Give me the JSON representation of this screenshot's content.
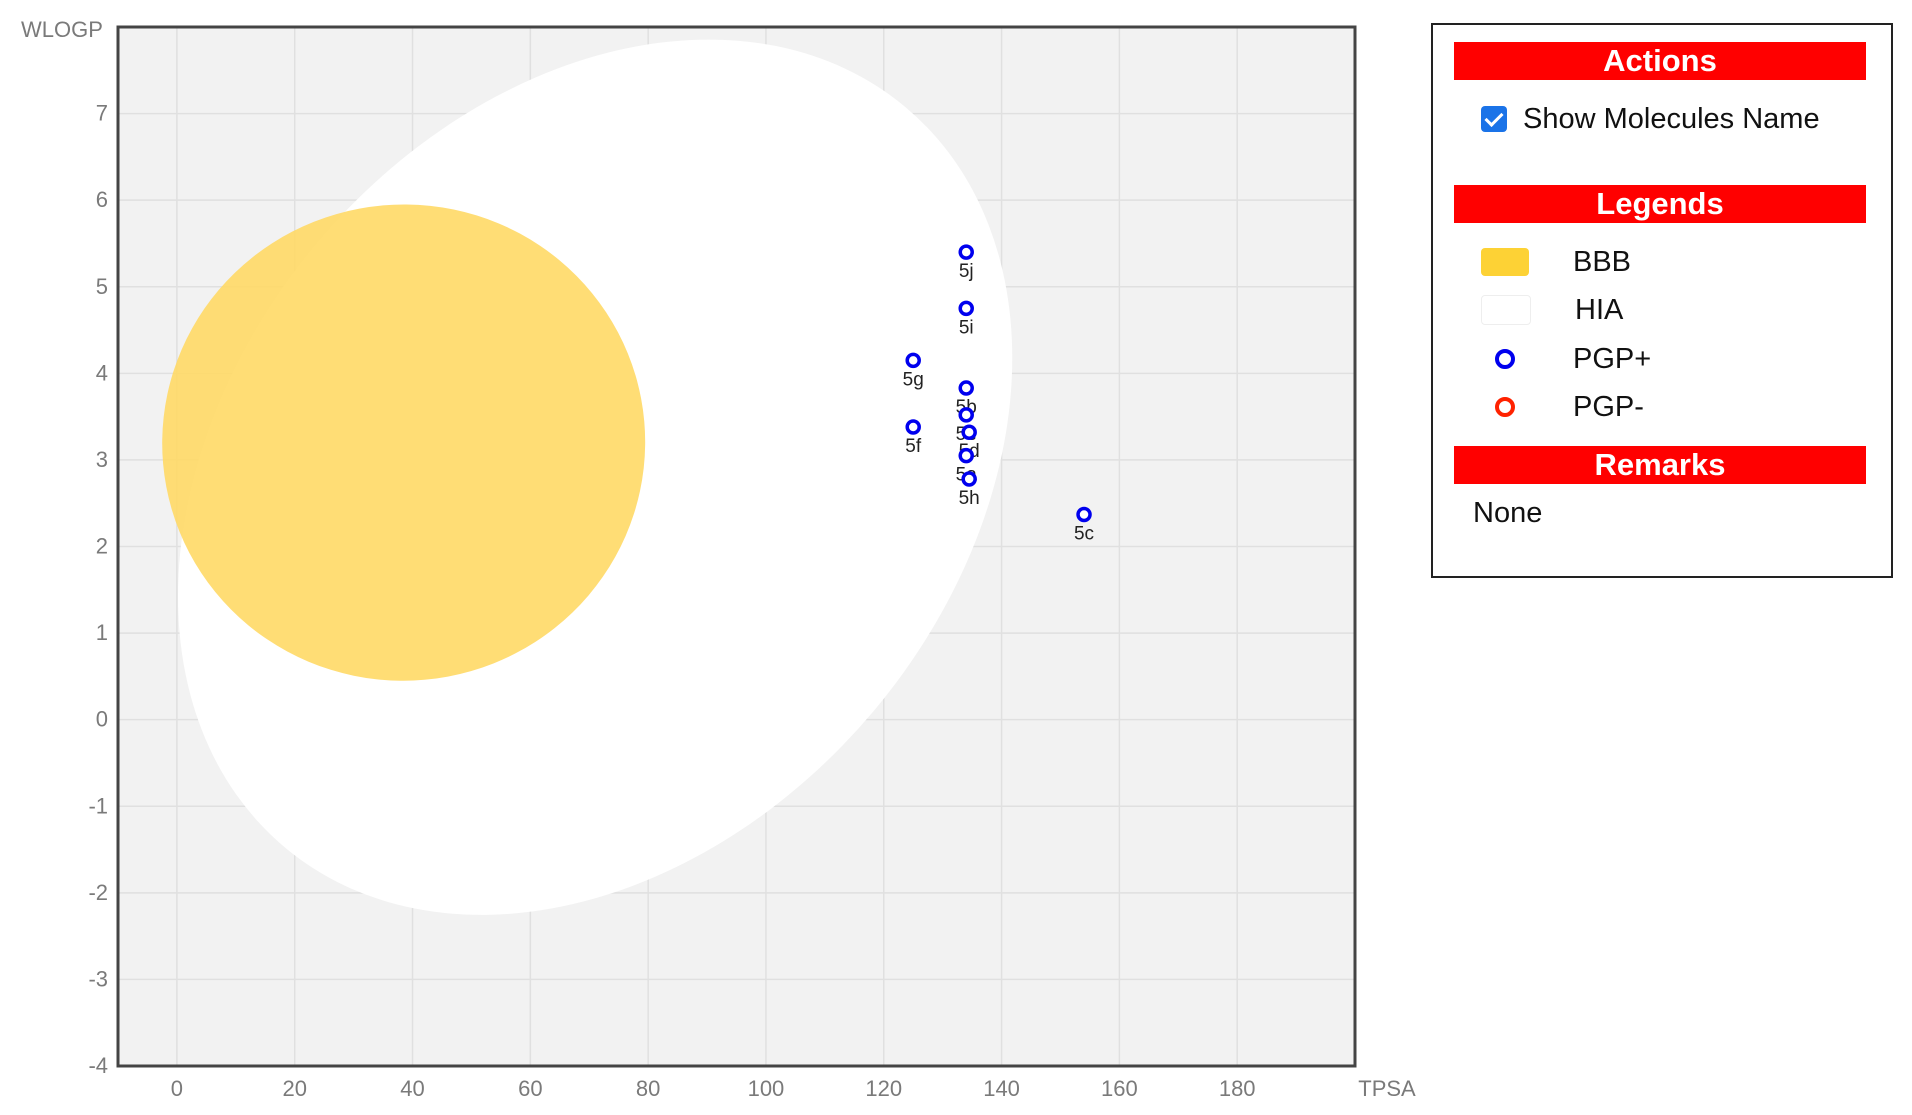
{
  "chart_data": {
    "type": "scatter",
    "xlabel": "TPSA",
    "ylabel": "WLOGP",
    "xlim": [
      -10,
      200
    ],
    "ylim": [
      -4,
      8
    ],
    "xticks": [
      0,
      20,
      40,
      60,
      80,
      100,
      120,
      140,
      160,
      180
    ],
    "yticks": [
      -4,
      -3,
      -2,
      -1,
      0,
      1,
      2,
      3,
      4,
      5,
      6,
      7
    ],
    "grid": true,
    "regions": [
      {
        "name": "HIA",
        "color": "#ffffff",
        "cx": 71.0,
        "cy": 2.8,
        "rx": 82.0,
        "ry": 4.2,
        "rotation_deg": -50
      },
      {
        "name": "BBB",
        "color": "#ffd966",
        "cx": 38.5,
        "cy": 3.2,
        "rx": 41.0,
        "ry": 2.75,
        "rotation_deg": -5
      }
    ],
    "series": [
      {
        "name": "PGP+",
        "color": "#0000ee",
        "points": [
          {
            "label": "5j",
            "x": 134.0,
            "y": 5.4
          },
          {
            "label": "5i",
            "x": 134.0,
            "y": 4.75
          },
          {
            "label": "5g",
            "x": 125.0,
            "y": 4.15
          },
          {
            "label": "5b",
            "x": 134.0,
            "y": 3.83
          },
          {
            "label": "5e",
            "x": 134.0,
            "y": 3.52
          },
          {
            "label": "5d",
            "x": 134.5,
            "y": 3.32
          },
          {
            "label": "5f",
            "x": 125.0,
            "y": 3.38
          },
          {
            "label": "5a",
            "x": 134.0,
            "y": 3.05
          },
          {
            "label": "5h",
            "x": 134.5,
            "y": 2.78
          },
          {
            "label": "5c",
            "x": 154.0,
            "y": 2.37
          }
        ]
      }
    ]
  },
  "panel": {
    "actions_title": "Actions",
    "show_names_label": "Show Molecules Name",
    "legends_title": "Legends",
    "legend_items": [
      {
        "label": "BBB",
        "color": "#fdd235"
      },
      {
        "label": "HIA",
        "color": "#ffffff"
      },
      {
        "label": "PGP+",
        "color": "#0000ee"
      },
      {
        "label": "PGP-",
        "color": "#ff2200"
      }
    ],
    "remarks_title": "Remarks",
    "remarks_text": "None"
  }
}
